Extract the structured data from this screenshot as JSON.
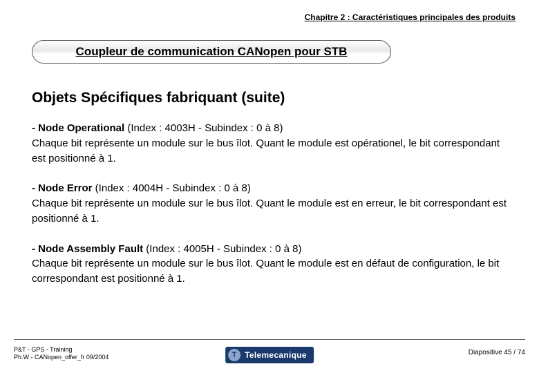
{
  "chapter_header": "Chapitre 2 : Caractéristiques principales des produits",
  "title_box": "Coupleur de communication CANopen pour STB",
  "section_title": "Objets Spécifiques fabriquant (suite)",
  "paragraphs": [
    {
      "lead_bold": "- Node Operational",
      "lead_rest": " (Index : 4003H - Subindex : 0 à 8)",
      "body": " Chaque bit représente un module sur le bus îlot. Quant le module est opérationel, le bit correspondant est positionné à 1."
    },
    {
      "lead_bold": "- Node Error",
      "lead_rest": " (Index : 4004H - Subindex : 0 à 8)",
      "body": "Chaque bit représente un module sur le bus îlot. Quant le module est en erreur, le bit correspondant est positionné à 1."
    },
    {
      "lead_bold": "- Node Assembly Fault",
      "lead_rest": " (Index : 4005H - Subindex : 0 à 8)",
      "body": " Chaque bit représente un module sur le bus îlot. Quant le module est en défaut de configuration, le bit correspondant est positionné à 1."
    }
  ],
  "footer_left_line1": "P&T - GPS - Training",
  "footer_left_line2": "Ph.W - CANopen_offer_fr  09/2004",
  "footer_right": "Diapositive 45 / 74",
  "logo_badge": "T",
  "logo_text": "Telemecanique",
  "colors": {
    "text": "#000000",
    "background": "#ffffff",
    "title_border": "#555555",
    "footer_line": "#666666",
    "logo_bg": "#1a3a6e",
    "logo_badge_bg": "#8aa5c9",
    "logo_text": "#ffffff"
  },
  "fonts": {
    "chapter_header_size": 12,
    "title_box_size": 17,
    "section_title_size": 21,
    "body_size": 15,
    "footer_left_size": 9,
    "footer_right_size": 10,
    "logo_text_size": 12
  }
}
